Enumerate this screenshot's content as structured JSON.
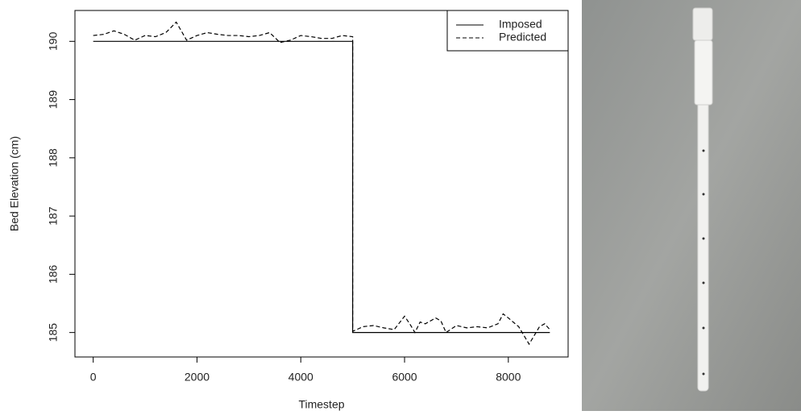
{
  "chart_data": {
    "type": "line",
    "xlabel": "Timestep",
    "ylabel": "Bed Elevation (cm)",
    "xlim": [
      -352,
      9152
    ],
    "ylim": [
      184.58,
      190.53
    ],
    "xticks": [
      0,
      2000,
      4000,
      6000,
      8000
    ],
    "yticks": [
      185,
      186,
      187,
      188,
      189,
      190
    ],
    "legend": "top-right",
    "series": [
      {
        "name": "Imposed",
        "color": "#000000",
        "linestyle": "solid",
        "x": [
          0,
          5000,
          5000,
          8800
        ],
        "values": [
          190,
          190,
          185,
          185
        ]
      },
      {
        "name": "Predicted",
        "color": "#000000",
        "linestyle": "dashed",
        "x": [
          0,
          200,
          400,
          600,
          800,
          1000,
          1200,
          1400,
          1600,
          1800,
          2000,
          2200,
          2400,
          2600,
          2800,
          3000,
          3200,
          3400,
          3600,
          3800,
          4000,
          4200,
          4400,
          4600,
          4800,
          5000,
          5000,
          5200,
          5400,
          5600,
          5800,
          6000,
          6100,
          6200,
          6300,
          6400,
          6600,
          6700,
          6800,
          7000,
          7200,
          7400,
          7600,
          7800,
          7900,
          8000,
          8200,
          8400,
          8600,
          8700,
          8800
        ],
        "values": [
          190.1,
          190.12,
          190.18,
          190.12,
          190.02,
          190.1,
          190.08,
          190.15,
          190.33,
          190.02,
          190.1,
          190.15,
          190.12,
          190.1,
          190.1,
          190.08,
          190.1,
          190.15,
          189.98,
          190.02,
          190.1,
          190.08,
          190.05,
          190.05,
          190.1,
          190.08,
          185.02,
          185.1,
          185.12,
          185.08,
          185.05,
          185.28,
          185.15,
          185.0,
          185.18,
          185.15,
          185.25,
          185.2,
          185.0,
          185.12,
          185.08,
          185.1,
          185.08,
          185.15,
          185.32,
          185.25,
          185.1,
          184.8,
          185.1,
          185.15,
          185.05
        ]
      }
    ]
  }
}
